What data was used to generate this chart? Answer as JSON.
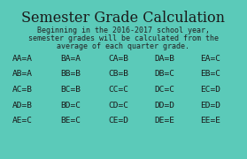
{
  "background_color": "#5bcab9",
  "title": "Semester Grade Calculation",
  "title_fontsize": 11.5,
  "title_color": "#1a1a1a",
  "subtitle_line1": "Beginning in the 2016-2017 school year,",
  "subtitle_line2": "semester grades will be calculated from the",
  "subtitle_line3": "average of each quarter grade.",
  "subtitle_fontsize": 6.0,
  "subtitle_color": "#222222",
  "table_rows": [
    [
      "AA=A",
      "BA=A",
      "CA=B",
      "DA=B",
      "EA=C"
    ],
    [
      "AB=A",
      "BB=B",
      "CB=B",
      "DB=C",
      "EB=C"
    ],
    [
      "AC=B",
      "BC=B",
      "CC=C",
      "DC=C",
      "EC=D"
    ],
    [
      "AD=B",
      "BD=C",
      "CD=C",
      "DD=D",
      "ED=D"
    ],
    [
      "AE=C",
      "BE=C",
      "CE=D",
      "DE=E",
      "EE=E"
    ]
  ],
  "table_fontsize": 6.8,
  "table_color": "#1a1a1a",
  "font_family": "monospace"
}
